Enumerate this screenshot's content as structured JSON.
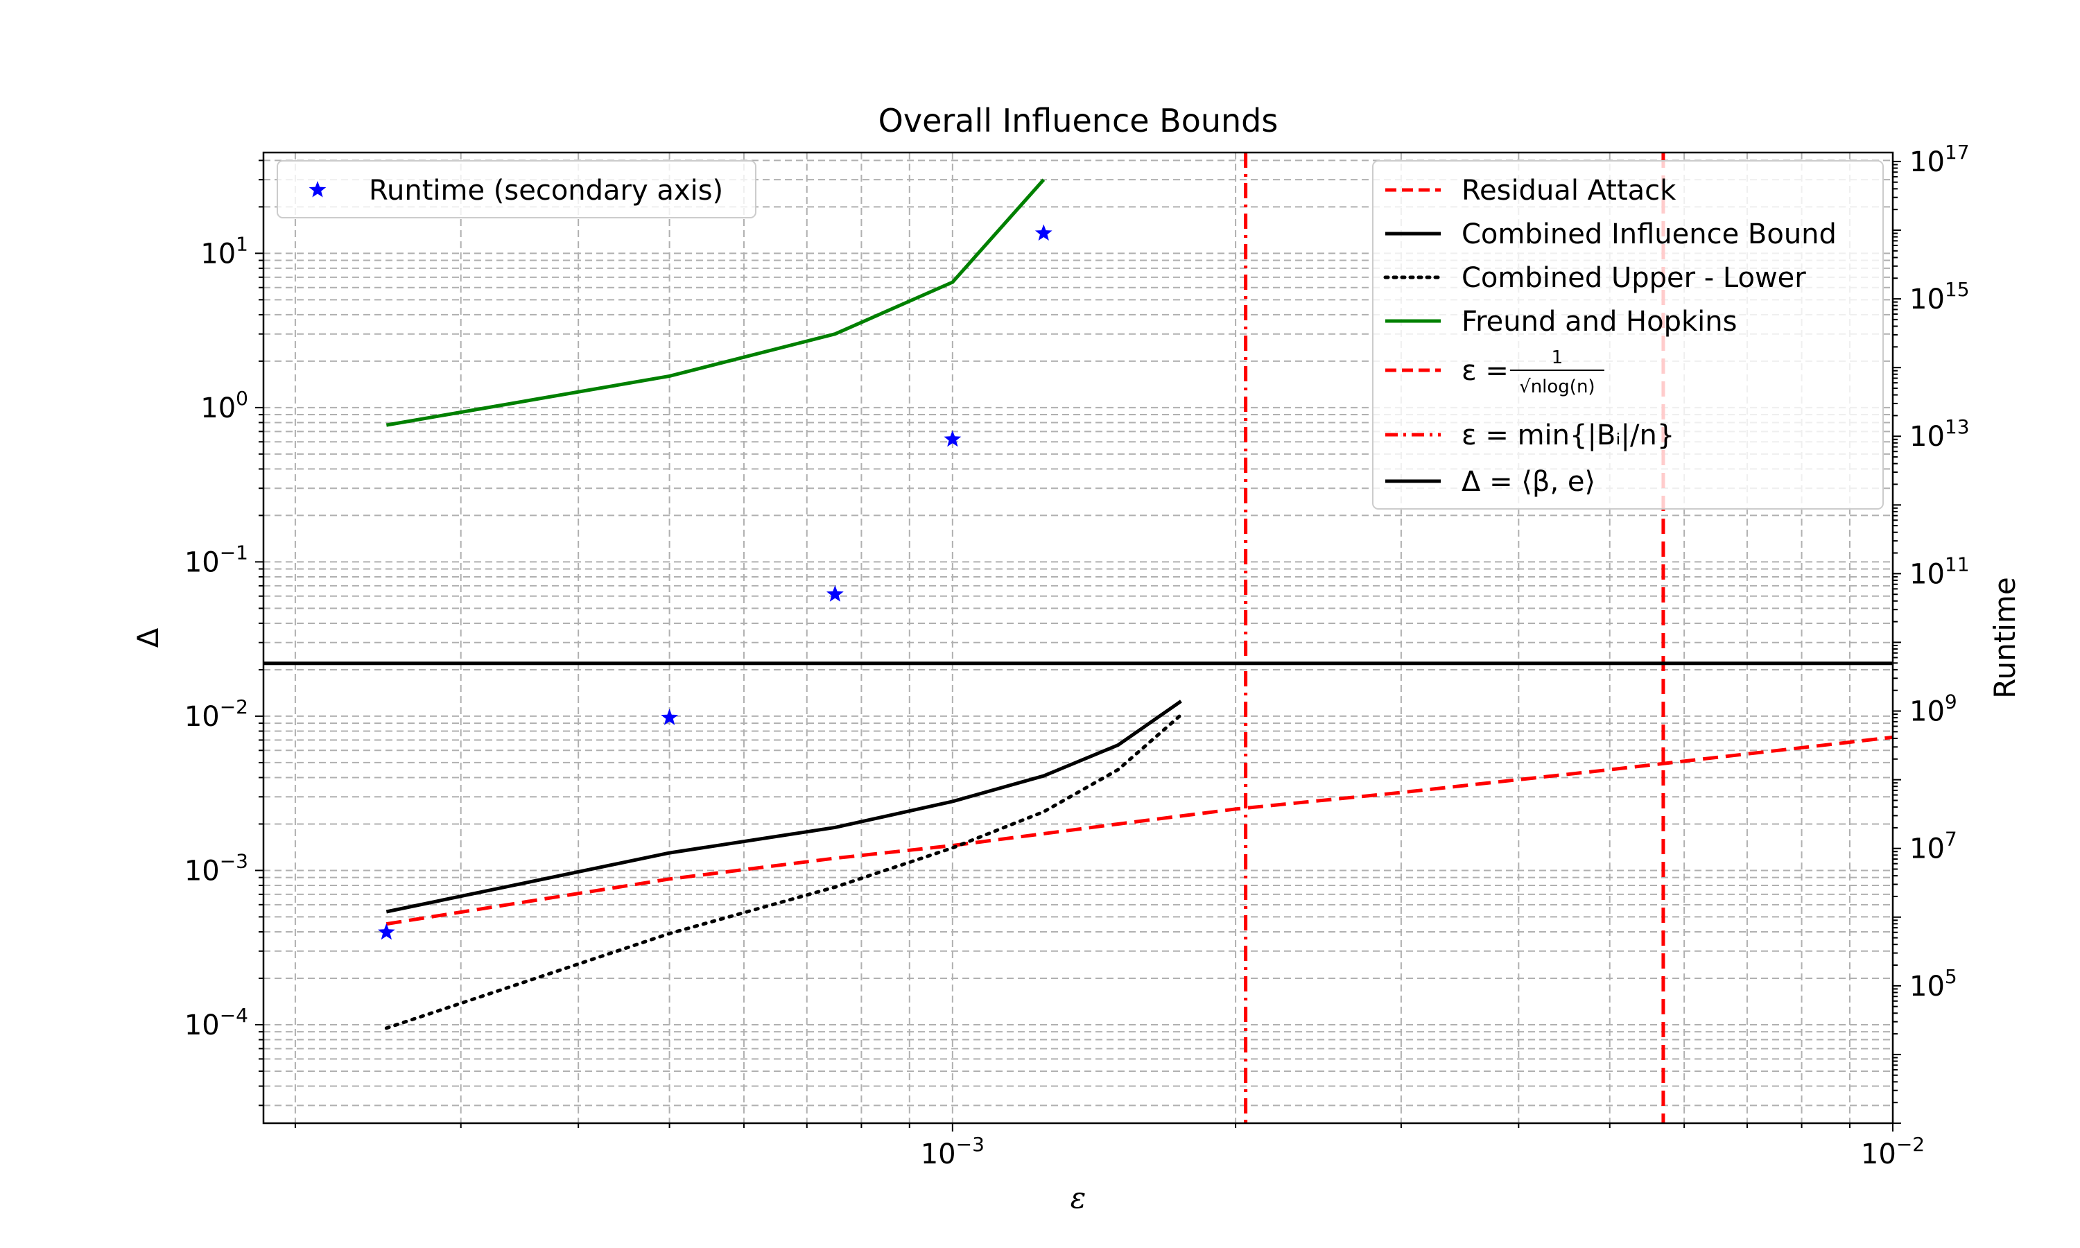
{
  "chart_data": {
    "type": "line",
    "title": "Overall Influence Bounds",
    "xlabel": "ε",
    "ylabel": "Δ",
    "y2label": "Runtime",
    "xscale": "log",
    "yscale": "log",
    "y2scale": "log",
    "xlim": [
      0.000185,
      0.01
    ],
    "ylim": [
      2.3e-05,
      45
    ],
    "y2lim": [
      1000,
      1.35e+17
    ],
    "grid": true,
    "x_ticks": [
      {
        "value": 0.001,
        "base": "10",
        "exp": "−3"
      },
      {
        "value": 0.01,
        "base": "10",
        "exp": "−2"
      }
    ],
    "y_ticks": [
      {
        "value": 0.0001,
        "base": "10",
        "exp": "−4"
      },
      {
        "value": 0.001,
        "base": "10",
        "exp": "−3"
      },
      {
        "value": 0.01,
        "base": "10",
        "exp": "−2"
      },
      {
        "value": 0.1,
        "base": "10",
        "exp": "−1"
      },
      {
        "value": 1,
        "base": "10",
        "exp": "0"
      },
      {
        "value": 10,
        "base": "10",
        "exp": "1"
      }
    ],
    "y2_ticks": [
      {
        "value": 100000,
        "base": "10",
        "exp": "5"
      },
      {
        "value": 10000000,
        "base": "10",
        "exp": "7"
      },
      {
        "value": 1000000000,
        "base": "10",
        "exp": "9"
      },
      {
        "value": 100000000000,
        "base": "10",
        "exp": "11"
      },
      {
        "value": 10000000000000,
        "base": "10",
        "exp": "13"
      },
      {
        "value": 1000000000000000,
        "base": "10",
        "exp": "15"
      },
      {
        "value": 100000000000000000,
        "base": "10",
        "exp": "17"
      }
    ],
    "series": [
      {
        "name": "Residual Attack",
        "color": "#ff0000",
        "style": "dashed",
        "x": [
          0.00025,
          0.0005,
          0.00075,
          0.001,
          0.0015,
          0.002,
          0.003,
          0.005,
          0.01
        ],
        "y": [
          0.00045,
          0.00088,
          0.0012,
          0.00145,
          0.002,
          0.0025,
          0.0032,
          0.0045,
          0.0073
        ]
      },
      {
        "name": "Combined Influence Bound",
        "color": "#000000",
        "style": "solid",
        "x": [
          0.00025,
          0.0005,
          0.00075,
          0.001,
          0.00125,
          0.0015,
          0.00175
        ],
        "y": [
          0.00054,
          0.0013,
          0.0019,
          0.0028,
          0.0041,
          0.0065,
          0.0125
        ]
      },
      {
        "name": "Combined Upper - Lower",
        "color": "#000000",
        "style": "dotted",
        "x": [
          0.00025,
          0.0005,
          0.00075,
          0.001,
          0.00125,
          0.0015,
          0.00175
        ],
        "y": [
          9.5e-05,
          0.00039,
          0.00078,
          0.0014,
          0.0024,
          0.0045,
          0.0102
        ]
      },
      {
        "name": "Freund and Hopkins",
        "color": "#008000",
        "style": "solid",
        "x": [
          0.00025,
          0.0005,
          0.00075,
          0.001,
          0.00125
        ],
        "y": [
          0.77,
          1.6,
          3.0,
          6.5,
          30
        ]
      }
    ],
    "reference_lines": [
      {
        "name": "ε = 1/√(n log(n))",
        "legend_main": "ε = ",
        "legend_num": "1",
        "legend_den": "√nlog(n)",
        "orientation": "vertical",
        "value": 0.0057,
        "color": "#ff0000",
        "style": "dashed"
      },
      {
        "name": "ε = min{|Bᵢ|/n}",
        "legend_main": "ε = min{|Bᵢ|/n}",
        "orientation": "vertical",
        "value": 0.00205,
        "color": "#ff0000",
        "style": "dashdot"
      },
      {
        "name": "Δ = ⟨β, e⟩",
        "legend_main": "Δ = ⟨β, e⟩",
        "orientation": "horizontal",
        "value": 0.022,
        "color": "#000000",
        "style": "solid"
      }
    ],
    "runtime_series": {
      "name": "Runtime (secondary axis)",
      "axis": "secondary",
      "marker": "star",
      "color": "#0000ff",
      "x": [
        0.00025,
        0.0005,
        0.00075,
        0.001,
        0.00125
      ],
      "y": [
        600000,
        800000000,
        50000000000,
        9000000000000,
        9000000000000000
      ]
    },
    "legend_primary_location": "upper right",
    "legend_secondary_location": "upper left"
  }
}
